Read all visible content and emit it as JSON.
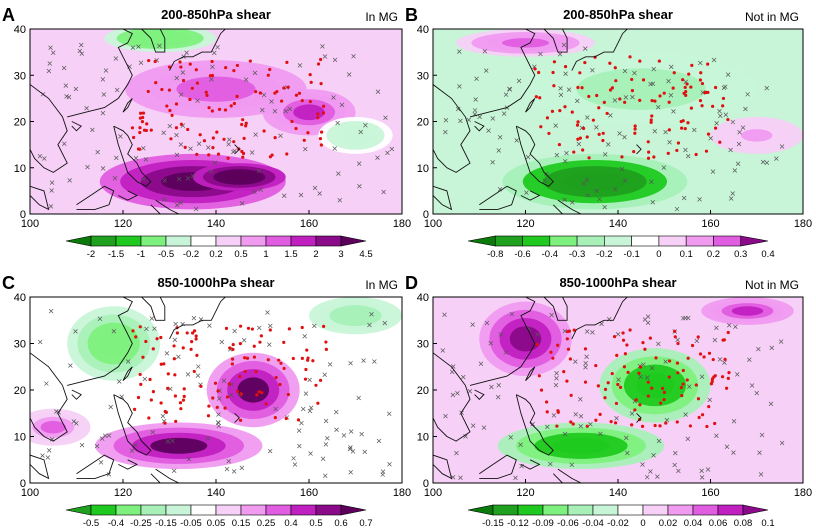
{
  "figure": {
    "type": "four-panel contour maps",
    "colors": {
      "green_dark": "#0a7a0a",
      "green_mid": "#1fc91f",
      "green_light": "#7ef07e",
      "green_pale": "#c8f5d8",
      "white": "#ffffff",
      "pink_pale": "#f7d0f7",
      "pink_light": "#f09af0",
      "magenta": "#e05ce0",
      "magenta_deep": "#c020c0",
      "purple": "#8a0a8a",
      "dark_purple": "#5c005c",
      "marker_red": "#e01010",
      "marker_gray": "#555555"
    }
  },
  "chart_data": [
    {
      "type": "heatmap",
      "panel_label": "A",
      "title": "200-850hPa shear",
      "subtitle": "In MG",
      "x_ticks": [
        "100",
        "120",
        "140",
        "160",
        "180"
      ],
      "y_ticks": [
        "0",
        "10",
        "20",
        "30",
        "40"
      ],
      "xlim": [
        100,
        180
      ],
      "ylim": [
        0,
        40
      ],
      "colorbar_labels": [
        "-2",
        "-1.5",
        "-1",
        "-0.5",
        "-0.2",
        "0.2",
        "0.5",
        "1",
        "1.5",
        "2",
        "3",
        "4.5"
      ],
      "colorbar_colors": [
        "#0a7a0a",
        "#1fa01f",
        "#1fc91f",
        "#7ef07e",
        "#c8f5d8",
        "#ffffff",
        "#f7d0f7",
        "#f09af0",
        "#e05ce0",
        "#c020c0",
        "#8a0a8a",
        "#5c005c"
      ],
      "regions": [
        {
          "kind": "max",
          "lon": 135,
          "lat": 7,
          "rx": 20,
          "ry": 6,
          "level": 3
        },
        {
          "kind": "max",
          "lon": 145,
          "lat": 8,
          "rx": 10,
          "ry": 3,
          "level": 4.5
        },
        {
          "kind": "max",
          "lon": 140,
          "lat": 27,
          "rx": 25,
          "ry": 8,
          "level": 1
        },
        {
          "kind": "max",
          "lon": 160,
          "lat": 22,
          "rx": 10,
          "ry": 5,
          "level": 1.5
        },
        {
          "kind": "min",
          "lon": 128,
          "lat": 38,
          "rx": 12,
          "ry": 3,
          "level": -1
        },
        {
          "kind": "min",
          "lon": 170,
          "lat": 17,
          "rx": 8,
          "ry": 4,
          "level": -0.5
        }
      ]
    },
    {
      "type": "heatmap",
      "panel_label": "B",
      "title": "200-850hPa shear",
      "subtitle": "Not in MG",
      "x_ticks": [
        "100",
        "120",
        "140",
        "160",
        "180"
      ],
      "y_ticks": [
        "0",
        "10",
        "20",
        "30",
        "40"
      ],
      "xlim": [
        100,
        180
      ],
      "ylim": [
        0,
        40
      ],
      "colorbar_labels": [
        "-0.8",
        "-0.6",
        "-0.4",
        "-0.3",
        "-0.2",
        "-0.1",
        "0",
        "0.1",
        "0.2",
        "0.3",
        "0.4"
      ],
      "colorbar_colors": [
        "#0a7a0a",
        "#1fa01f",
        "#1fc91f",
        "#7ef07e",
        "#a8f0b8",
        "#c8f5d8",
        "#ffffff",
        "#f7d0f7",
        "#f09af0",
        "#e05ce0",
        "#8a0a8a"
      ],
      "regions": [
        {
          "kind": "min",
          "lon": 135,
          "lat": 7,
          "rx": 20,
          "ry": 6,
          "level": -0.8
        },
        {
          "kind": "min",
          "lon": 145,
          "lat": 27,
          "rx": 25,
          "ry": 8,
          "level": -0.3
        },
        {
          "kind": "max",
          "lon": 120,
          "lat": 37,
          "rx": 15,
          "ry": 3,
          "level": 0.2
        },
        {
          "kind": "max",
          "lon": 170,
          "lat": 17,
          "rx": 10,
          "ry": 4,
          "level": 0.1
        }
      ]
    },
    {
      "type": "heatmap",
      "panel_label": "C",
      "title": "850-1000hPa shear",
      "subtitle": "In MG",
      "x_ticks": [
        "100",
        "120",
        "140",
        "160",
        "180"
      ],
      "y_ticks": [
        "0",
        "10",
        "20",
        "30",
        "40"
      ],
      "xlim": [
        100,
        180
      ],
      "ylim": [
        0,
        40
      ],
      "colorbar_labels": [
        "-0.5",
        "-0.4",
        "-0.25",
        "-0.15",
        "-0.05",
        "0.05",
        "0.15",
        "0.25",
        "0.4",
        "0.5",
        "0.6",
        "0.7"
      ],
      "colorbar_colors": [
        "#1fa01f",
        "#1fc91f",
        "#7ef07e",
        "#a8f0b8",
        "#c8f5d8",
        "#ffffff",
        "#f7d0f7",
        "#f09af0",
        "#e05ce0",
        "#c020c0",
        "#8a0a8a",
        "#5c005c"
      ],
      "regions": [
        {
          "kind": "max",
          "lon": 132,
          "lat": 8,
          "rx": 18,
          "ry": 5,
          "level": 0.6
        },
        {
          "kind": "max",
          "lon": 148,
          "lat": 20,
          "rx": 10,
          "ry": 8,
          "level": 0.6
        },
        {
          "kind": "max",
          "lon": 105,
          "lat": 12,
          "rx": 8,
          "ry": 4,
          "level": 0.25
        },
        {
          "kind": "min",
          "lon": 118,
          "lat": 30,
          "rx": 10,
          "ry": 8,
          "level": -0.4
        },
        {
          "kind": "min",
          "lon": 170,
          "lat": 36,
          "rx": 10,
          "ry": 4,
          "level": -0.25
        }
      ]
    },
    {
      "type": "heatmap",
      "panel_label": "D",
      "title": "850-1000hPa shear",
      "subtitle": "Not in MG",
      "x_ticks": [
        "100",
        "120",
        "140",
        "160",
        "180"
      ],
      "y_ticks": [
        "0",
        "10",
        "20",
        "30",
        "40"
      ],
      "xlim": [
        100,
        180
      ],
      "ylim": [
        0,
        40
      ],
      "colorbar_labels": [
        "-0.15",
        "-0.12",
        "-0.09",
        "-0.06",
        "-0.04",
        "-0.02",
        "0",
        "0.02",
        "0.04",
        "0.06",
        "0.08",
        "0.1"
      ],
      "colorbar_colors": [
        "#0a7a0a",
        "#1fa01f",
        "#1fc91f",
        "#7ef07e",
        "#a8f0b8",
        "#c8f5d8",
        "#ffffff",
        "#f7d0f7",
        "#f09af0",
        "#e05ce0",
        "#c020c0",
        "#8a0a8a"
      ],
      "regions": [
        {
          "kind": "min",
          "lon": 132,
          "lat": 8,
          "rx": 18,
          "ry": 5,
          "level": -0.12
        },
        {
          "kind": "min",
          "lon": 148,
          "lat": 21,
          "rx": 12,
          "ry": 8,
          "level": -0.12
        },
        {
          "kind": "max",
          "lon": 120,
          "lat": 31,
          "rx": 10,
          "ry": 8,
          "level": 0.08
        },
        {
          "kind": "max",
          "lon": 168,
          "lat": 37,
          "rx": 10,
          "ry": 3,
          "level": 0.06
        }
      ]
    }
  ]
}
